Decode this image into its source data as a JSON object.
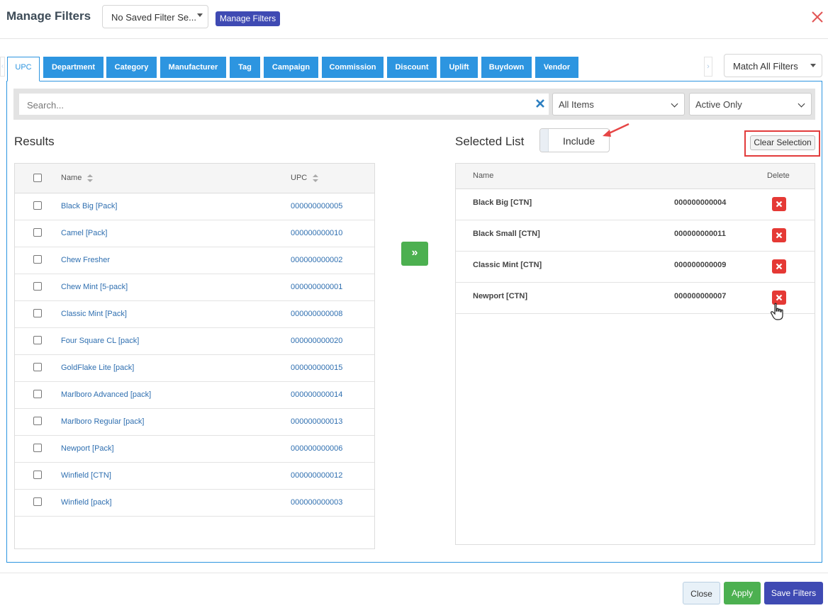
{
  "header": {
    "title": "Manage Filters",
    "saved_filter_value": "No Saved Filter Se...",
    "manage_button": "Manage Filters"
  },
  "tabs": [
    {
      "label": "UPC",
      "active": true
    },
    {
      "label": "Department"
    },
    {
      "label": "Category"
    },
    {
      "label": "Manufacturer"
    },
    {
      "label": "Tag"
    },
    {
      "label": "Campaign"
    },
    {
      "label": "Commission"
    },
    {
      "label": "Discount"
    },
    {
      "label": "Uplift"
    },
    {
      "label": "Buydown"
    },
    {
      "label": "Vendor"
    }
  ],
  "match_filter": "Match All Filters",
  "search": {
    "placeholder": "Search...",
    "items_filter": "All Items",
    "status_filter": "Active Only"
  },
  "results": {
    "title": "Results",
    "columns": {
      "name": "Name",
      "upc": "UPC"
    },
    "rows": [
      {
        "name": "Black Big [Pack]",
        "upc": "000000000005"
      },
      {
        "name": "Camel [Pack]",
        "upc": "000000000010"
      },
      {
        "name": "Chew Fresher",
        "upc": "000000000002"
      },
      {
        "name": "Chew Mint [5-pack]",
        "upc": "000000000001"
      },
      {
        "name": "Classic Mint [Pack]",
        "upc": "000000000008"
      },
      {
        "name": "Four Square CL [pack]",
        "upc": "000000000020"
      },
      {
        "name": "GoldFlake Lite [pack]",
        "upc": "000000000015"
      },
      {
        "name": "Marlboro Advanced [pack]",
        "upc": "000000000014"
      },
      {
        "name": "Marlboro Regular [pack]",
        "upc": "000000000013"
      },
      {
        "name": "Newport [Pack]",
        "upc": "000000000006"
      },
      {
        "name": "Winfield [CTN]",
        "upc": "000000000012"
      },
      {
        "name": "Winfield [pack]",
        "upc": "000000000003"
      }
    ]
  },
  "move_button": "»",
  "selected": {
    "title": "Selected List",
    "mode": "Include",
    "clear_button": "Clear Selection",
    "columns": {
      "name": "Name",
      "delete": "Delete"
    },
    "rows": [
      {
        "name": "Black Big [CTN]",
        "upc": "000000000004"
      },
      {
        "name": "Black Small [CTN]",
        "upc": "000000000011"
      },
      {
        "name": "Classic Mint [CTN]",
        "upc": "000000000009"
      },
      {
        "name": "Newport [CTN]",
        "upc": "000000000007"
      }
    ]
  },
  "footer": {
    "close": "Close",
    "apply": "Apply",
    "save": "Save Filters"
  },
  "colors": {
    "tab_blue": "#2d95e0",
    "manage_blue": "#3f4ab3",
    "apply_green": "#4cb050",
    "delete_red": "#e53935",
    "highlight_red": "#e23b3b"
  }
}
